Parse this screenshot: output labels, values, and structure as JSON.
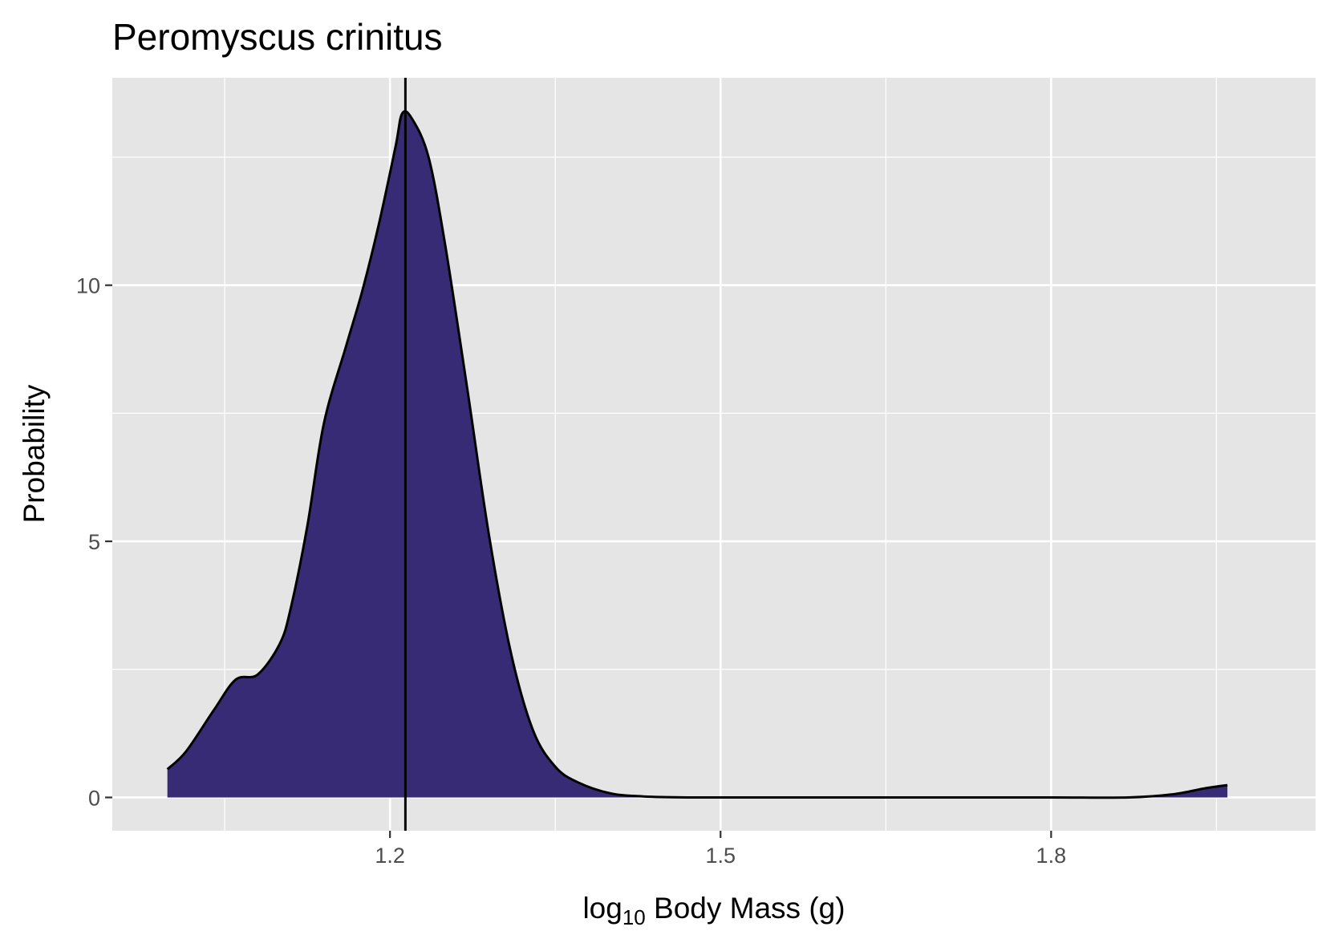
{
  "chart_data": {
    "type": "area",
    "title": "Peromyscus crinitus",
    "xlabel_prefix": "log",
    "xlabel_subscript": "10",
    "xlabel_suffix": " Body Mass (g)",
    "ylabel": "Probability",
    "xlim": [
      0.948,
      2.04
    ],
    "ylim": [
      -0.65,
      14.05
    ],
    "x_ticks": [
      {
        "value": 1.2,
        "label": "1.2"
      },
      {
        "value": 1.5,
        "label": "1.5"
      },
      {
        "value": 1.8,
        "label": "1.8"
      }
    ],
    "x_minor_ticks": [
      1.05,
      1.35,
      1.65,
      1.95
    ],
    "y_ticks": [
      {
        "value": 0,
        "label": "0"
      },
      {
        "value": 5,
        "label": "5"
      },
      {
        "value": 10,
        "label": "10"
      }
    ],
    "y_minor_ticks": [
      2.5,
      7.5,
      12.5
    ],
    "vline_x": 1.214,
    "fill_color": "#382b76",
    "line_color": "#000000",
    "panel_color": "#e5e5e5",
    "grid_color": "#ffffff",
    "grid": true,
    "series": [
      {
        "x": [
          0.998,
          1.015,
          1.04,
          1.06,
          1.08,
          1.1,
          1.11,
          1.125,
          1.14,
          1.16,
          1.175,
          1.19,
          1.205,
          1.211,
          1.22,
          1.235,
          1.25,
          1.27,
          1.29,
          1.31,
          1.33,
          1.35,
          1.37,
          1.4,
          1.43,
          1.47,
          1.52,
          1.6,
          1.7,
          1.8,
          1.87,
          1.91,
          1.94,
          1.96
        ],
        "y": [
          0.55,
          0.9,
          1.7,
          2.3,
          2.4,
          3.0,
          3.7,
          5.3,
          7.3,
          8.8,
          9.9,
          11.2,
          12.7,
          13.35,
          13.25,
          12.5,
          10.8,
          8.0,
          5.1,
          2.8,
          1.3,
          0.6,
          0.3,
          0.08,
          0.02,
          0.0,
          0.0,
          0.0,
          0.0,
          0.0,
          0.0,
          0.06,
          0.18,
          0.24
        ]
      }
    ]
  }
}
